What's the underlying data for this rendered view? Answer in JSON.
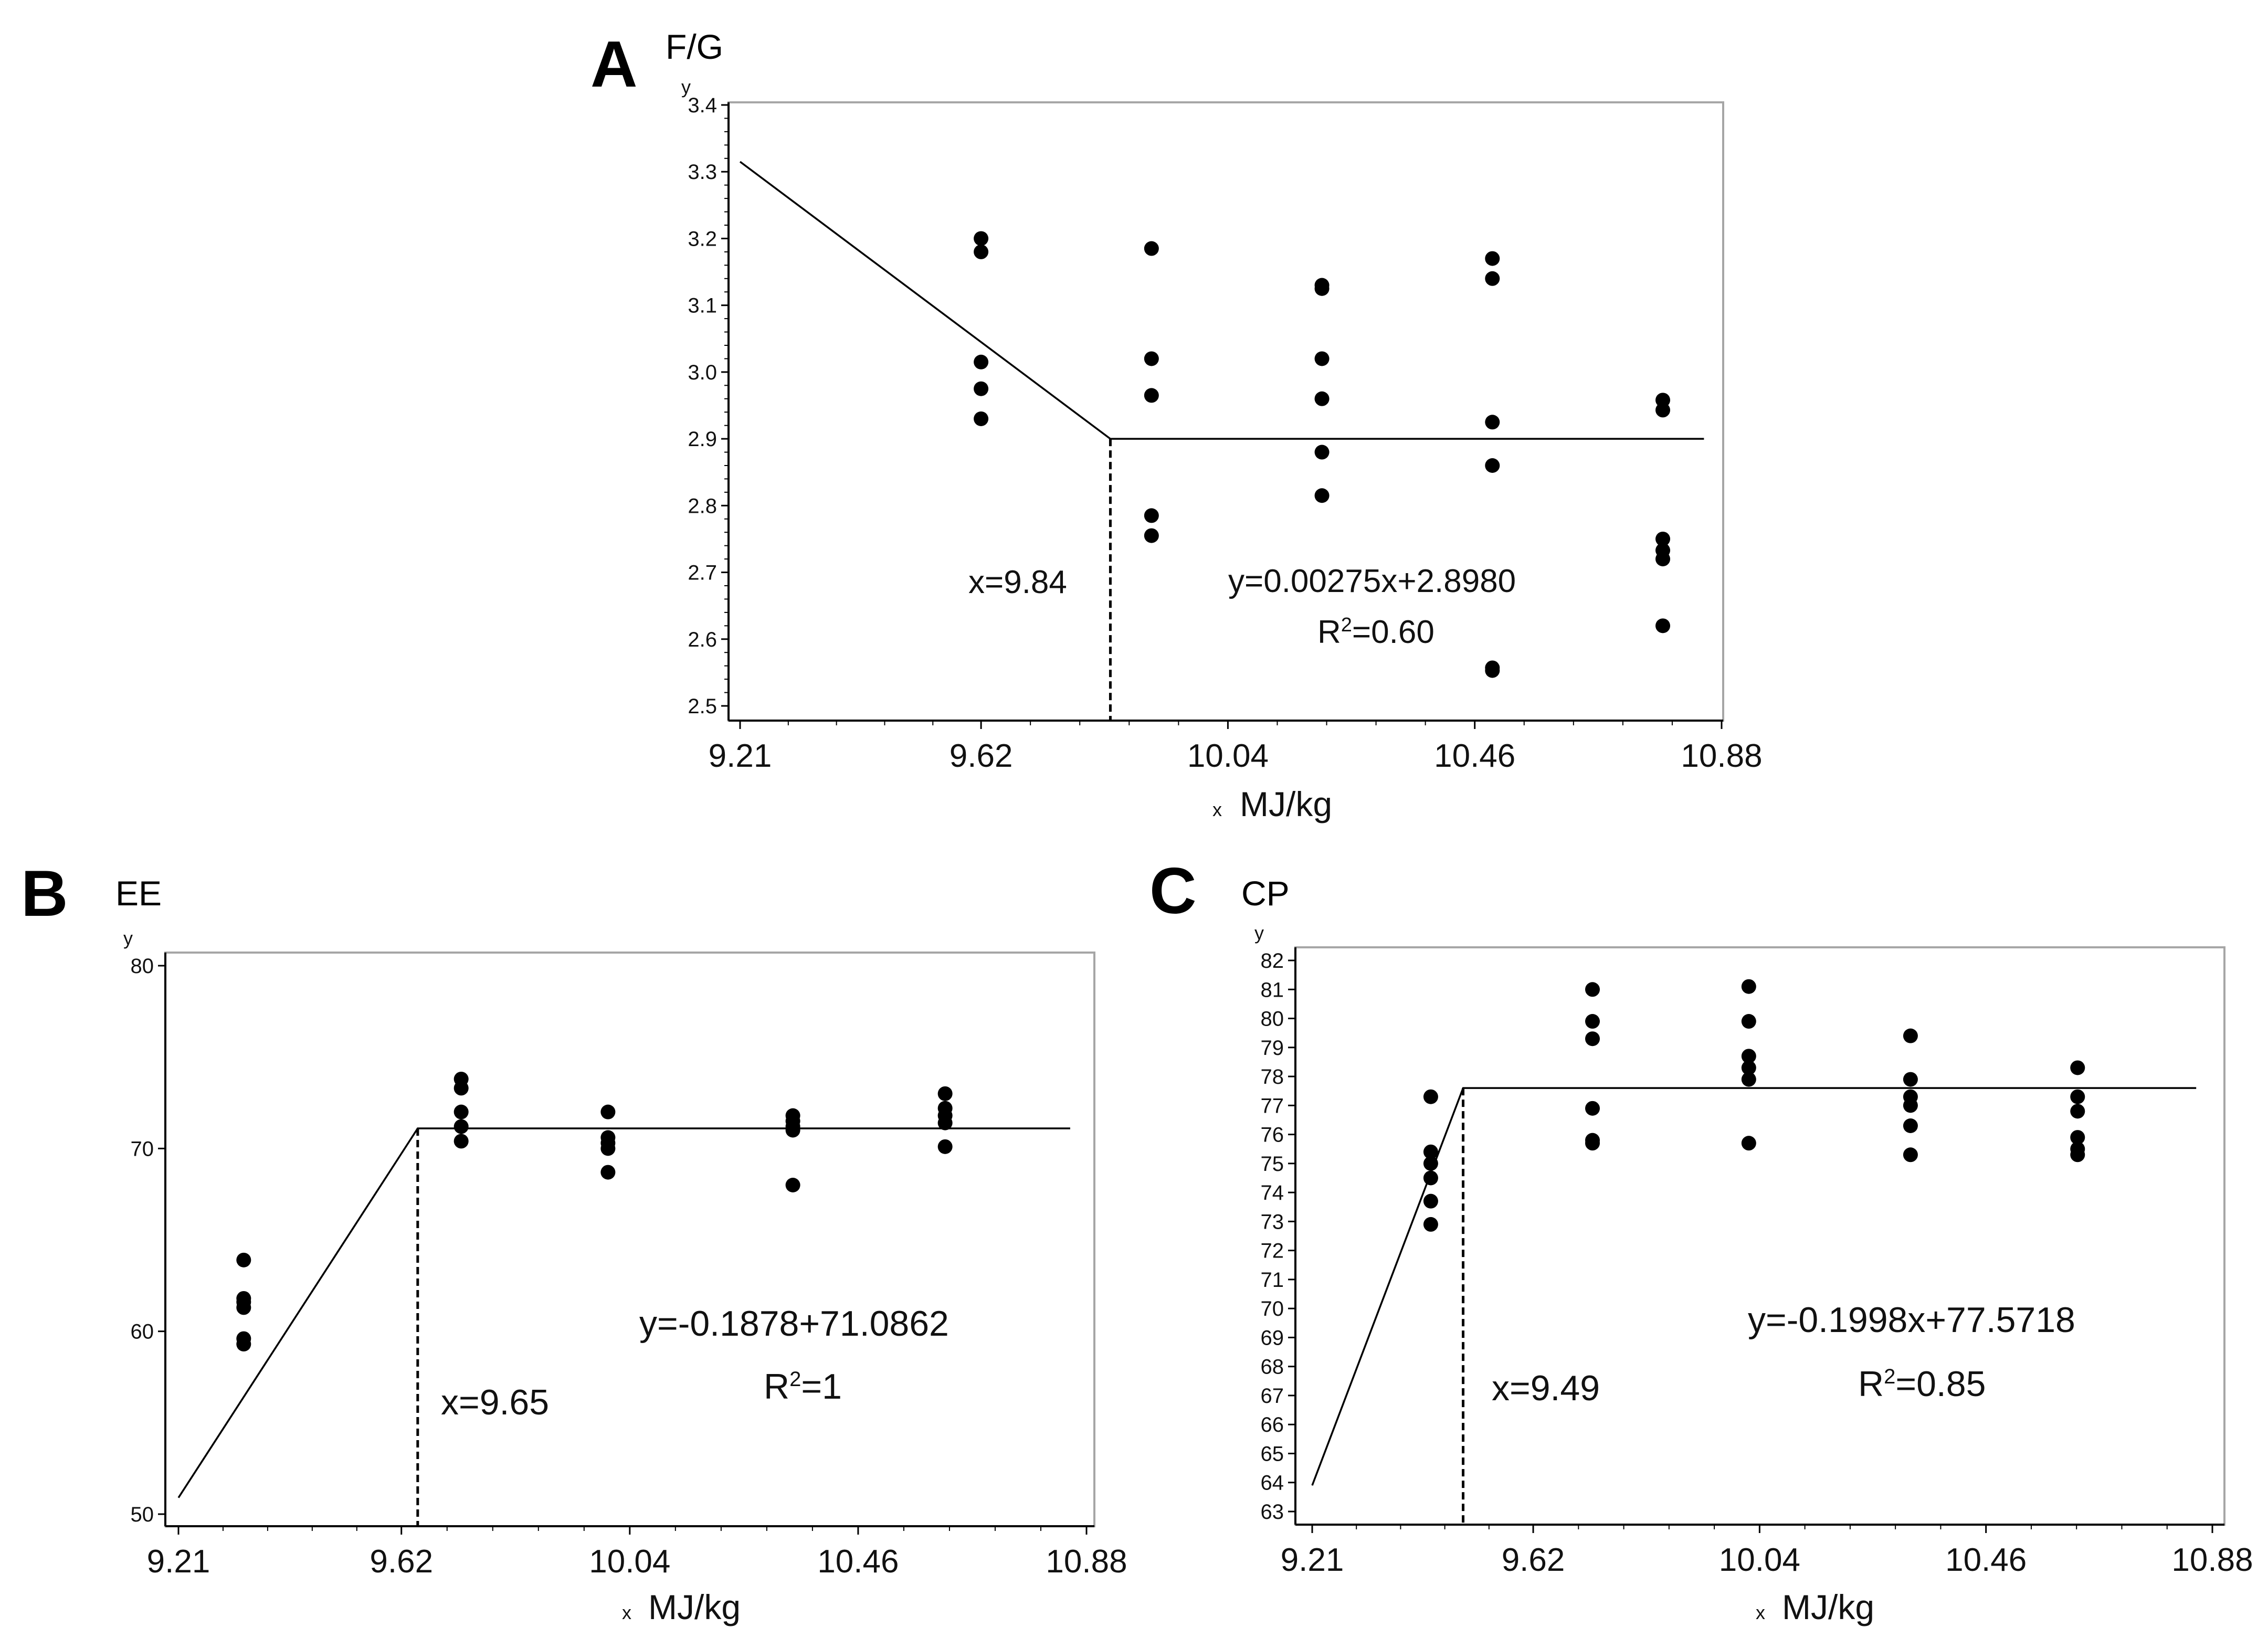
{
  "chart_data": [
    {
      "panel": "A",
      "type": "scatter",
      "title": "F/G",
      "ylabel": "F/G",
      "y_axis_letter": "y",
      "x_axis_letter": "x",
      "xlabel": "MJ/kg",
      "xlim": [
        9.21,
        10.88
      ],
      "ylim": [
        2.5,
        3.4
      ],
      "xticks": [
        9.21,
        9.62,
        10.04,
        10.46,
        10.88
      ],
      "xtick_labels": [
        "9.21",
        "9.62",
        "10.04",
        "10.46",
        "10.88"
      ],
      "yticks": [
        2.5,
        2.6,
        2.7,
        2.8,
        2.9,
        3.0,
        3.1,
        3.2,
        3.3,
        3.4
      ],
      "ytick_labels": [
        "2.5",
        "2.6",
        "2.7",
        "2.8",
        "2.9",
        "3.0",
        "3.1",
        "3.2",
        "3.3",
        "3.4"
      ],
      "points": [
        {
          "x": 9.62,
          "y": 3.2
        },
        {
          "x": 9.62,
          "y": 3.18
        },
        {
          "x": 9.62,
          "y": 3.015
        },
        {
          "x": 9.62,
          "y": 2.975
        },
        {
          "x": 9.62,
          "y": 2.93
        },
        {
          "x": 9.91,
          "y": 3.185
        },
        {
          "x": 9.91,
          "y": 3.02
        },
        {
          "x": 9.91,
          "y": 2.965
        },
        {
          "x": 9.91,
          "y": 2.785
        },
        {
          "x": 9.91,
          "y": 2.755
        },
        {
          "x": 10.2,
          "y": 3.13
        },
        {
          "x": 10.2,
          "y": 3.125
        },
        {
          "x": 10.2,
          "y": 3.02
        },
        {
          "x": 10.2,
          "y": 2.96
        },
        {
          "x": 10.2,
          "y": 2.88
        },
        {
          "x": 10.2,
          "y": 2.815
        },
        {
          "x": 10.49,
          "y": 3.17
        },
        {
          "x": 10.49,
          "y": 3.14
        },
        {
          "x": 10.49,
          "y": 2.925
        },
        {
          "x": 10.49,
          "y": 2.86
        },
        {
          "x": 10.49,
          "y": 2.557
        },
        {
          "x": 10.49,
          "y": 2.553
        },
        {
          "x": 10.78,
          "y": 2.958
        },
        {
          "x": 10.78,
          "y": 2.943
        },
        {
          "x": 10.78,
          "y": 2.75
        },
        {
          "x": 10.78,
          "y": 2.733
        },
        {
          "x": 10.78,
          "y": 2.72
        },
        {
          "x": 10.78,
          "y": 2.62
        }
      ],
      "fit_line": [
        {
          "x": 9.21,
          "y": 3.315
        },
        {
          "x": 9.84,
          "y": 2.9
        },
        {
          "x": 10.85,
          "y": 2.9
        }
      ],
      "breakpoint": {
        "x": 9.84,
        "y": 2.9
      },
      "annotations": {
        "breakpoint_label": "x=9.84",
        "equation": "y=0.00275x+2.8980",
        "r2_prefix": "R",
        "r2_sup": "2",
        "r2_value": "=0.60"
      }
    },
    {
      "panel": "B",
      "type": "scatter",
      "title": "EE",
      "ylabel": "EE",
      "y_axis_letter": "y",
      "x_axis_letter": "x",
      "xlabel": "MJ/kg",
      "xlim": [
        9.21,
        10.88
      ],
      "ylim": [
        50,
        80
      ],
      "xticks": [
        9.21,
        9.62,
        10.04,
        10.46,
        10.88
      ],
      "xtick_labels": [
        "9.21",
        "9.62",
        "10.04",
        "10.46",
        "10.88"
      ],
      "yticks": [
        50,
        60,
        70,
        80
      ],
      "ytick_labels": [
        "50",
        "60",
        "70",
        "80"
      ],
      "points": [
        {
          "x": 9.33,
          "y": 63.9
        },
        {
          "x": 9.33,
          "y": 61.8
        },
        {
          "x": 9.33,
          "y": 61.6
        },
        {
          "x": 9.33,
          "y": 61.3
        },
        {
          "x": 9.33,
          "y": 59.6
        },
        {
          "x": 9.33,
          "y": 59.3
        },
        {
          "x": 9.73,
          "y": 73.8
        },
        {
          "x": 9.73,
          "y": 73.3
        },
        {
          "x": 9.73,
          "y": 72.0
        },
        {
          "x": 9.73,
          "y": 71.2
        },
        {
          "x": 9.73,
          "y": 70.4
        },
        {
          "x": 10.0,
          "y": 72.0
        },
        {
          "x": 10.0,
          "y": 70.6
        },
        {
          "x": 10.0,
          "y": 70.3
        },
        {
          "x": 10.0,
          "y": 70.0
        },
        {
          "x": 10.0,
          "y": 68.7
        },
        {
          "x": 10.34,
          "y": 71.8
        },
        {
          "x": 10.34,
          "y": 71.5
        },
        {
          "x": 10.34,
          "y": 71.2
        },
        {
          "x": 10.34,
          "y": 71.0
        },
        {
          "x": 10.34,
          "y": 68.0
        },
        {
          "x": 10.62,
          "y": 73.0
        },
        {
          "x": 10.62,
          "y": 72.2
        },
        {
          "x": 10.62,
          "y": 71.8
        },
        {
          "x": 10.62,
          "y": 71.4
        },
        {
          "x": 10.62,
          "y": 70.1
        }
      ],
      "fit_line": [
        {
          "x": 9.21,
          "y": 50.9
        },
        {
          "x": 9.65,
          "y": 71.1
        },
        {
          "x": 10.85,
          "y": 71.1
        }
      ],
      "breakpoint": {
        "x": 9.65,
        "y": 71.1
      },
      "annotations": {
        "breakpoint_label": "x=9.65",
        "equation": "y=-0.1878+71.0862",
        "r2_prefix": "R",
        "r2_sup": "2",
        "r2_value": "=1"
      }
    },
    {
      "panel": "C",
      "type": "scatter",
      "title": "CP",
      "ylabel": "CP",
      "y_axis_letter": "y",
      "x_axis_letter": "x",
      "xlabel": "MJ/kg",
      "xlim": [
        9.21,
        10.88
      ],
      "ylim": [
        63,
        82
      ],
      "xticks": [
        9.21,
        9.62,
        10.04,
        10.46,
        10.88
      ],
      "xtick_labels": [
        "9.21",
        "9.62",
        "10.04",
        "10.46",
        "10.88"
      ],
      "yticks": [
        63,
        64,
        65,
        66,
        67,
        68,
        69,
        70,
        71,
        72,
        73,
        74,
        75,
        76,
        77,
        78,
        79,
        80,
        81,
        82
      ],
      "ytick_labels": [
        "63",
        "64",
        "65",
        "66",
        "67",
        "68",
        "69",
        "70",
        "71",
        "72",
        "73",
        "74",
        "75",
        "76",
        "77",
        "78",
        "79",
        "80",
        "81",
        "82"
      ],
      "points": [
        {
          "x": 9.43,
          "y": 77.3
        },
        {
          "x": 9.43,
          "y": 75.4
        },
        {
          "x": 9.43,
          "y": 75.0
        },
        {
          "x": 9.43,
          "y": 74.5
        },
        {
          "x": 9.43,
          "y": 73.7
        },
        {
          "x": 9.43,
          "y": 72.9
        },
        {
          "x": 9.73,
          "y": 81.0
        },
        {
          "x": 9.73,
          "y": 79.9
        },
        {
          "x": 9.73,
          "y": 79.3
        },
        {
          "x": 9.73,
          "y": 76.9
        },
        {
          "x": 9.73,
          "y": 75.8
        },
        {
          "x": 9.73,
          "y": 75.7
        },
        {
          "x": 10.02,
          "y": 81.1
        },
        {
          "x": 10.02,
          "y": 79.9
        },
        {
          "x": 10.02,
          "y": 78.7
        },
        {
          "x": 10.02,
          "y": 78.3
        },
        {
          "x": 10.02,
          "y": 77.9
        },
        {
          "x": 10.02,
          "y": 75.7
        },
        {
          "x": 10.32,
          "y": 79.4
        },
        {
          "x": 10.32,
          "y": 77.9
        },
        {
          "x": 10.32,
          "y": 77.3
        },
        {
          "x": 10.32,
          "y": 77.0
        },
        {
          "x": 10.32,
          "y": 76.3
        },
        {
          "x": 10.32,
          "y": 75.3
        },
        {
          "x": 10.63,
          "y": 78.3
        },
        {
          "x": 10.63,
          "y": 77.3
        },
        {
          "x": 10.63,
          "y": 76.8
        },
        {
          "x": 10.63,
          "y": 75.9
        },
        {
          "x": 10.63,
          "y": 75.5
        },
        {
          "x": 10.63,
          "y": 75.3
        }
      ],
      "fit_line": [
        {
          "x": 9.21,
          "y": 63.9
        },
        {
          "x": 9.49,
          "y": 77.6
        },
        {
          "x": 10.85,
          "y": 77.6
        }
      ],
      "breakpoint": {
        "x": 9.49,
        "y": 77.6
      },
      "annotations": {
        "breakpoint_label": "x=9.49",
        "equation": "y=-0.1998x+77.5718",
        "r2_prefix": "R",
        "r2_sup": "2",
        "r2_value": "=0.85"
      }
    }
  ]
}
